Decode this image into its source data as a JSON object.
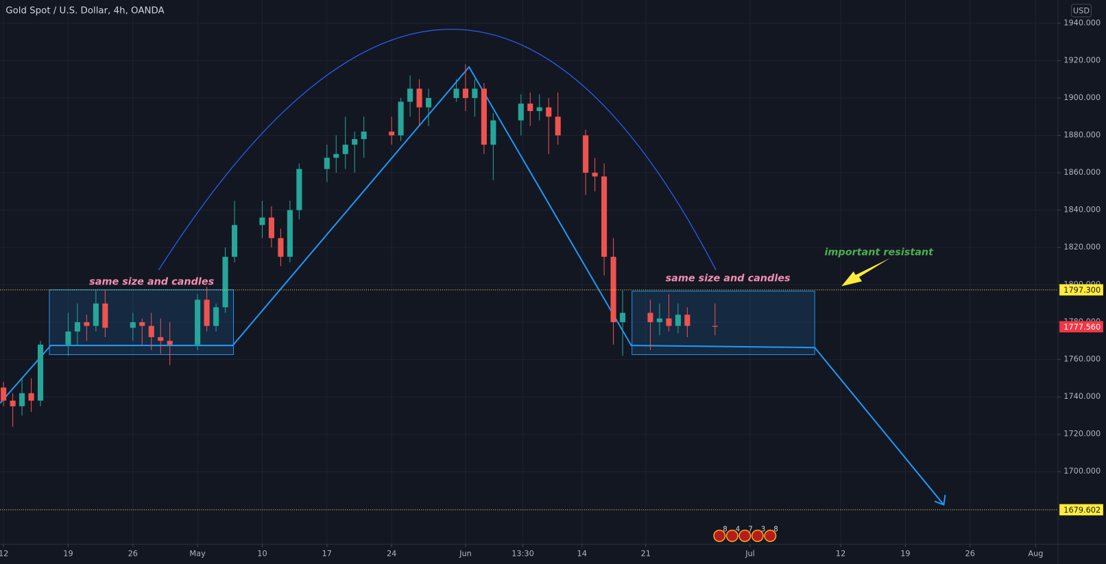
{
  "chart_data": {
    "type": "candlestick",
    "title": "Gold Spot / U.S. Dollar, 4h, OANDA",
    "currency": "USD",
    "up_color": "#26a69a",
    "down_color": "#ef5350",
    "grid": true,
    "xlim": [
      -0.38,
      114.12
    ],
    "xticks": [
      {
        "value": 0,
        "label": "12"
      },
      {
        "value": 7,
        "label": "19"
      },
      {
        "value": 14,
        "label": "26"
      },
      {
        "value": 21,
        "label": "May"
      },
      {
        "value": 28,
        "label": "10"
      },
      {
        "value": 35,
        "label": "17"
      },
      {
        "value": 42,
        "label": "24"
      },
      {
        "value": 50,
        "label": "Jun"
      },
      {
        "value": 56.2,
        "label": "13:30"
      },
      {
        "value": 62.6,
        "label": "14"
      },
      {
        "value": 69.5,
        "label": "21"
      },
      {
        "value": 80.8,
        "label": "Jul"
      },
      {
        "value": 90.6,
        "label": "12"
      },
      {
        "value": 97.6,
        "label": "19"
      },
      {
        "value": 104.6,
        "label": "26"
      },
      {
        "value": 111.7,
        "label": "Aug"
      }
    ],
    "ylim": [
      1661.13,
      1952.45
    ],
    "yticks": [
      {
        "value": 1700,
        "label": "1700.000"
      },
      {
        "value": 1720,
        "label": "1720.000"
      },
      {
        "value": 1740,
        "label": "1740.000"
      },
      {
        "value": 1760,
        "label": "1760.000"
      },
      {
        "value": 1780,
        "label": "1780.000"
      },
      {
        "value": 1800,
        "label": "1800.000"
      },
      {
        "value": 1820,
        "label": "1820.000"
      },
      {
        "value": 1840,
        "label": "1840.000"
      },
      {
        "value": 1860,
        "label": "1860.000"
      },
      {
        "value": 1880,
        "label": "1880.000"
      },
      {
        "value": 1900,
        "label": "1900.000"
      },
      {
        "value": 1920,
        "label": "1920.000"
      },
      {
        "value": 1940,
        "label": "1940.000"
      }
    ],
    "candles": {
      "x": [
        0,
        1,
        2,
        3,
        4,
        7,
        8,
        9,
        10,
        11,
        14,
        15,
        16,
        17,
        18,
        21,
        22,
        23,
        24,
        25,
        28,
        29,
        30,
        31,
        32,
        35,
        36,
        37,
        38,
        39,
        42,
        43,
        44,
        45,
        46,
        49,
        50,
        51,
        52,
        53,
        56,
        57,
        58,
        59,
        60,
        63,
        64,
        65,
        66,
        67,
        70,
        71,
        72,
        73,
        74,
        77
      ],
      "open": [
        1745,
        1738,
        1735,
        1742,
        1738,
        1768,
        1775,
        1780,
        1778,
        1790,
        1777,
        1780,
        1778,
        1772,
        1770,
        1768,
        1792,
        1778,
        1788,
        1815,
        1832,
        1836,
        1825,
        1815,
        1840,
        1862,
        1868,
        1870,
        1875,
        1878,
        1882,
        1880,
        1898,
        1905,
        1895,
        1900,
        1905,
        1900,
        1905,
        1875,
        1888,
        1897,
        1893,
        1895,
        1890,
        1880,
        1860,
        1858,
        1815,
        1780,
        1785,
        1780,
        1782,
        1778,
        1784,
        1778
      ],
      "high": [
        1748,
        1742,
        1750,
        1750,
        1770,
        1785,
        1790,
        1784,
        1797,
        1797,
        1785,
        1782,
        1785,
        1782,
        1780,
        1795,
        1799,
        1790,
        1820,
        1845,
        1845,
        1842,
        1830,
        1845,
        1865,
        1875,
        1880,
        1890,
        1882,
        1890,
        1890,
        1900,
        1912,
        1910,
        1905,
        1910,
        1918,
        1910,
        1908,
        1892,
        1902,
        1903,
        1902,
        1900,
        1903,
        1883,
        1868,
        1865,
        1825,
        1797,
        1792,
        1790,
        1795,
        1790,
        1788,
        1790
      ],
      "low": [
        1735,
        1724,
        1730,
        1732,
        1735,
        1762,
        1768,
        1770,
        1775,
        1772,
        1770,
        1768,
        1765,
        1763,
        1757,
        1765,
        1775,
        1775,
        1785,
        1812,
        1825,
        1820,
        1810,
        1812,
        1835,
        1855,
        1860,
        1862,
        1860,
        1868,
        1875,
        1877,
        1890,
        1885,
        1885,
        1898,
        1893,
        1890,
        1870,
        1856,
        1880,
        1885,
        1888,
        1870,
        1875,
        1848,
        1850,
        1805,
        1768,
        1762,
        1765,
        1773,
        1775,
        1774,
        1772,
        1773
      ],
      "close": [
        1738,
        1735,
        1742,
        1738,
        1768,
        1775,
        1780,
        1778,
        1790,
        1777,
        1780,
        1778,
        1772,
        1770,
        1768,
        1792,
        1778,
        1788,
        1815,
        1832,
        1836,
        1825,
        1815,
        1840,
        1862,
        1868,
        1870,
        1875,
        1878,
        1882,
        1880,
        1898,
        1905,
        1895,
        1900,
        1905,
        1900,
        1905,
        1875,
        1888,
        1897,
        1893,
        1895,
        1890,
        1880,
        1860,
        1858,
        1815,
        1780,
        1785,
        1780,
        1782,
        1778,
        1784,
        1778,
        1777.56
      ]
    },
    "levels": [
      {
        "value": 1797.3,
        "label": "1797.300",
        "color": "#ffeb3b"
      },
      {
        "value": 1679.602,
        "label": "1679.602",
        "color": "#ffeb3b"
      }
    ],
    "last_price": {
      "value": 1777.56,
      "label": "1777.560",
      "color": "#f23645"
    },
    "annotations": [
      "same size and candles",
      "same size and candles",
      "important resistant"
    ],
    "events": [
      "8",
      "4",
      "7",
      "3",
      "8"
    ]
  }
}
